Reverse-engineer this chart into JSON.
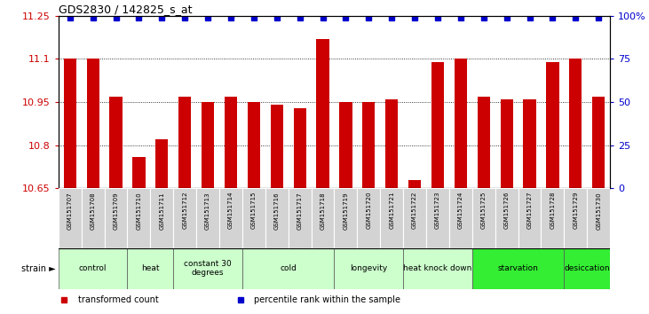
{
  "title": "GDS2830 / 142825_s_at",
  "samples": [
    "GSM151707",
    "GSM151708",
    "GSM151709",
    "GSM151710",
    "GSM151711",
    "GSM151712",
    "GSM151713",
    "GSM151714",
    "GSM151715",
    "GSM151716",
    "GSM151717",
    "GSM151718",
    "GSM151719",
    "GSM151720",
    "GSM151721",
    "GSM151722",
    "GSM151723",
    "GSM151724",
    "GSM151725",
    "GSM151726",
    "GSM151727",
    "GSM151728",
    "GSM151729",
    "GSM151730"
  ],
  "values": [
    11.1,
    11.1,
    10.97,
    10.76,
    10.82,
    10.97,
    10.95,
    10.97,
    10.95,
    10.94,
    10.93,
    11.17,
    10.95,
    10.95,
    10.96,
    10.68,
    11.09,
    11.1,
    10.97,
    10.96,
    10.96,
    11.09,
    11.1,
    10.97
  ],
  "ylim": [
    10.65,
    11.25
  ],
  "yticks": [
    10.65,
    10.8,
    10.95,
    11.1,
    11.25
  ],
  "ytick_labels": [
    "10.65",
    "10.8",
    "10.95",
    "11.1",
    "11.25"
  ],
  "right_yticks": [
    0,
    25,
    50,
    75,
    100
  ],
  "right_ytick_labels": [
    "0",
    "25",
    "50",
    "75",
    "100%"
  ],
  "bar_color": "#cc0000",
  "percentile_color": "#0000cc",
  "groups": [
    {
      "label": "control",
      "start": 0,
      "end": 2,
      "color": "#ccffcc"
    },
    {
      "label": "heat",
      "start": 3,
      "end": 4,
      "color": "#ccffcc"
    },
    {
      "label": "constant 30\ndegrees",
      "start": 5,
      "end": 7,
      "color": "#ccffcc"
    },
    {
      "label": "cold",
      "start": 8,
      "end": 11,
      "color": "#ccffcc"
    },
    {
      "label": "longevity",
      "start": 12,
      "end": 14,
      "color": "#ccffcc"
    },
    {
      "label": "heat knock down",
      "start": 15,
      "end": 17,
      "color": "#ccffcc"
    },
    {
      "label": "starvation",
      "start": 18,
      "end": 21,
      "color": "#33ee33"
    },
    {
      "label": "desiccation",
      "start": 22,
      "end": 23,
      "color": "#33ee33"
    }
  ],
  "bar_width": 0.55,
  "legend_items": [
    {
      "label": "transformed count",
      "color": "#cc0000"
    },
    {
      "label": "percentile rank within the sample",
      "color": "#0000cc"
    }
  ]
}
